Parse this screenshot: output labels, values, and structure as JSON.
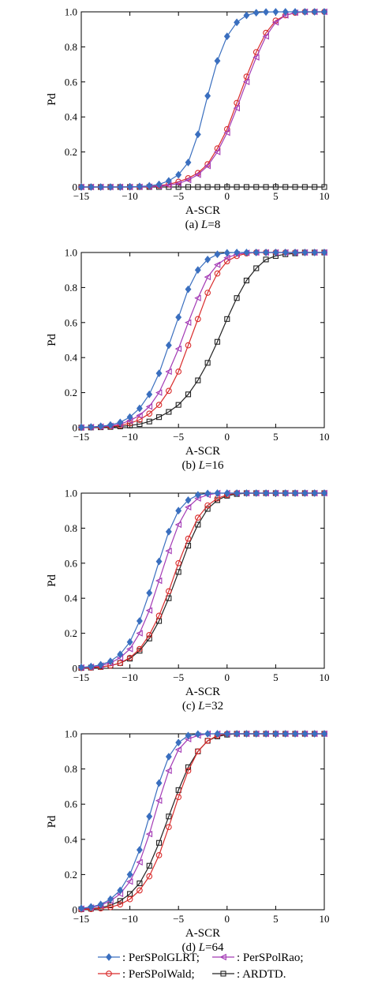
{
  "chart_data": [
    {
      "type": "line",
      "caption_prefix": "(a) ",
      "caption_var": "L",
      "caption_suffix": "=8",
      "xlabel": "A-SCR",
      "ylabel": "Pd",
      "xlim": [
        -15,
        10
      ],
      "ylim": [
        0,
        1
      ],
      "xticks": [
        -15,
        -10,
        -5,
        0,
        5,
        10
      ],
      "yticks": [
        0,
        0.2,
        0.4,
        0.6,
        0.8,
        1.0
      ],
      "grid": false,
      "x": [
        -15,
        -14,
        -13,
        -12,
        -11,
        -10,
        -9,
        -8,
        -7,
        -6,
        -5,
        -4,
        -3,
        -2,
        -1,
        0,
        1,
        2,
        3,
        4,
        5,
        6,
        7,
        8,
        9,
        10
      ],
      "series": [
        {
          "key": "glrt",
          "values": [
            0.0,
            0.0,
            0.0,
            0.0,
            0.0,
            0.001,
            0.003,
            0.007,
            0.015,
            0.035,
            0.07,
            0.14,
            0.3,
            0.52,
            0.72,
            0.86,
            0.94,
            0.98,
            0.995,
            0.999,
            1.0,
            1.0,
            1.0,
            1.0,
            1.0,
            1.0
          ]
        },
        {
          "key": "rao",
          "values": [
            0.0,
            0.0,
            0.0,
            0.0,
            0.0,
            0.0,
            0.001,
            0.002,
            0.005,
            0.01,
            0.02,
            0.04,
            0.07,
            0.12,
            0.2,
            0.31,
            0.45,
            0.6,
            0.74,
            0.86,
            0.94,
            0.98,
            0.995,
            1.0,
            1.0,
            1.0
          ]
        },
        {
          "key": "wald",
          "values": [
            0.0,
            0.0,
            0.0,
            0.0,
            0.0,
            0.0,
            0.001,
            0.003,
            0.008,
            0.015,
            0.03,
            0.05,
            0.08,
            0.13,
            0.22,
            0.33,
            0.48,
            0.63,
            0.77,
            0.88,
            0.95,
            0.98,
            0.995,
            1.0,
            1.0,
            1.0
          ]
        },
        {
          "key": "ardtd",
          "values": [
            0.0,
            0.0,
            0.0,
            0.0,
            0.0,
            0.0,
            0.0,
            0.0,
            0.0,
            0.0,
            0.0,
            0.0,
            0.0,
            0.0,
            0.0,
            0.0,
            0.0,
            0.0,
            0.0,
            0.0,
            0.0,
            0.0,
            0.0,
            0.0,
            0.0,
            0.0
          ]
        }
      ]
    },
    {
      "type": "line",
      "caption_prefix": "(b) ",
      "caption_var": "L",
      "caption_suffix": "=16",
      "xlabel": "A-SCR",
      "ylabel": "Pd",
      "xlim": [
        -15,
        10
      ],
      "ylim": [
        0,
        1
      ],
      "xticks": [
        -15,
        -10,
        -5,
        0,
        5,
        10
      ],
      "yticks": [
        0,
        0.2,
        0.4,
        0.6,
        0.8,
        1.0
      ],
      "grid": false,
      "x": [
        -15,
        -14,
        -13,
        -12,
        -11,
        -10,
        -9,
        -8,
        -7,
        -6,
        -5,
        -4,
        -3,
        -2,
        -1,
        0,
        1,
        2,
        3,
        4,
        5,
        6,
        7,
        8,
        9,
        10
      ],
      "series": [
        {
          "key": "glrt",
          "values": [
            0.002,
            0.004,
            0.008,
            0.015,
            0.03,
            0.06,
            0.11,
            0.19,
            0.31,
            0.47,
            0.63,
            0.79,
            0.9,
            0.96,
            0.99,
            0.998,
            1.0,
            1.0,
            1.0,
            1.0,
            1.0,
            1.0,
            1.0,
            1.0,
            1.0,
            1.0
          ]
        },
        {
          "key": "rao",
          "values": [
            0.001,
            0.003,
            0.006,
            0.01,
            0.02,
            0.04,
            0.07,
            0.12,
            0.2,
            0.32,
            0.45,
            0.6,
            0.74,
            0.86,
            0.93,
            0.97,
            0.99,
            0.998,
            1.0,
            1.0,
            1.0,
            1.0,
            1.0,
            1.0,
            1.0,
            1.0
          ]
        },
        {
          "key": "wald",
          "values": [
            0.001,
            0.002,
            0.004,
            0.007,
            0.012,
            0.025,
            0.045,
            0.08,
            0.13,
            0.21,
            0.32,
            0.47,
            0.62,
            0.77,
            0.88,
            0.95,
            0.98,
            0.995,
            1.0,
            1.0,
            1.0,
            1.0,
            1.0,
            1.0,
            1.0,
            1.0
          ]
        },
        {
          "key": "ardtd",
          "values": [
            0.0,
            0.001,
            0.002,
            0.004,
            0.007,
            0.012,
            0.02,
            0.035,
            0.06,
            0.09,
            0.13,
            0.19,
            0.27,
            0.37,
            0.49,
            0.62,
            0.74,
            0.84,
            0.91,
            0.96,
            0.98,
            0.99,
            0.995,
            1.0,
            1.0,
            1.0
          ]
        }
      ]
    },
    {
      "type": "line",
      "caption_prefix": "(c) ",
      "caption_var": "L",
      "caption_suffix": "=32",
      "xlabel": "A-SCR",
      "ylabel": "Pd",
      "xlim": [
        -15,
        10
      ],
      "ylim": [
        0,
        1
      ],
      "xticks": [
        -15,
        -10,
        -5,
        0,
        5,
        10
      ],
      "yticks": [
        0,
        0.2,
        0.4,
        0.6,
        0.8,
        1.0
      ],
      "grid": false,
      "x": [
        -15,
        -14,
        -13,
        -12,
        -11,
        -10,
        -9,
        -8,
        -7,
        -6,
        -5,
        -4,
        -3,
        -2,
        -1,
        0,
        1,
        2,
        3,
        4,
        5,
        6,
        7,
        8,
        9,
        10
      ],
      "series": [
        {
          "key": "glrt",
          "values": [
            0.005,
            0.01,
            0.02,
            0.04,
            0.08,
            0.15,
            0.27,
            0.43,
            0.61,
            0.78,
            0.9,
            0.96,
            0.99,
            0.998,
            1.0,
            1.0,
            1.0,
            1.0,
            1.0,
            1.0,
            1.0,
            1.0,
            1.0,
            1.0,
            1.0,
            1.0
          ]
        },
        {
          "key": "rao",
          "values": [
            0.004,
            0.008,
            0.015,
            0.03,
            0.06,
            0.11,
            0.2,
            0.33,
            0.5,
            0.67,
            0.82,
            0.92,
            0.97,
            0.99,
            1.0,
            1.0,
            1.0,
            1.0,
            1.0,
            1.0,
            1.0,
            1.0,
            1.0,
            1.0,
            1.0,
            1.0
          ]
        },
        {
          "key": "wald",
          "values": [
            0.002,
            0.004,
            0.008,
            0.015,
            0.03,
            0.06,
            0.11,
            0.19,
            0.3,
            0.44,
            0.6,
            0.74,
            0.86,
            0.93,
            0.97,
            0.99,
            1.0,
            1.0,
            1.0,
            1.0,
            1.0,
            1.0,
            1.0,
            1.0,
            1.0,
            1.0
          ]
        },
        {
          "key": "ardtd",
          "values": [
            0.002,
            0.004,
            0.008,
            0.015,
            0.03,
            0.055,
            0.1,
            0.17,
            0.27,
            0.4,
            0.55,
            0.7,
            0.82,
            0.91,
            0.96,
            0.985,
            0.995,
            1.0,
            1.0,
            1.0,
            1.0,
            1.0,
            1.0,
            1.0,
            1.0,
            1.0
          ]
        }
      ]
    },
    {
      "type": "line",
      "caption_prefix": "(d) ",
      "caption_var": "L",
      "caption_suffix": "=64",
      "xlabel": "A-SCR",
      "ylabel": "Pd",
      "xlim": [
        -15,
        10
      ],
      "ylim": [
        0,
        1
      ],
      "xticks": [
        -15,
        -10,
        -5,
        0,
        5,
        10
      ],
      "yticks": [
        0,
        0.2,
        0.4,
        0.6,
        0.8,
        1.0
      ],
      "grid": false,
      "x": [
        -15,
        -14,
        -13,
        -12,
        -11,
        -10,
        -9,
        -8,
        -7,
        -6,
        -5,
        -4,
        -3,
        -2,
        -1,
        0,
        1,
        2,
        3,
        4,
        5,
        6,
        7,
        8,
        9,
        10
      ],
      "series": [
        {
          "key": "glrt",
          "values": [
            0.008,
            0.016,
            0.03,
            0.06,
            0.11,
            0.2,
            0.34,
            0.53,
            0.72,
            0.87,
            0.95,
            0.99,
            0.998,
            1.0,
            1.0,
            1.0,
            1.0,
            1.0,
            1.0,
            1.0,
            1.0,
            1.0,
            1.0,
            1.0,
            1.0,
            1.0
          ]
        },
        {
          "key": "rao",
          "values": [
            0.006,
            0.012,
            0.025,
            0.05,
            0.09,
            0.16,
            0.27,
            0.43,
            0.62,
            0.79,
            0.91,
            0.97,
            0.99,
            1.0,
            1.0,
            1.0,
            1.0,
            1.0,
            1.0,
            1.0,
            1.0,
            1.0,
            1.0,
            1.0,
            1.0,
            1.0
          ]
        },
        {
          "key": "wald",
          "values": [
            0.002,
            0.004,
            0.008,
            0.015,
            0.03,
            0.06,
            0.11,
            0.19,
            0.31,
            0.47,
            0.64,
            0.79,
            0.9,
            0.96,
            0.99,
            1.0,
            1.0,
            1.0,
            1.0,
            1.0,
            1.0,
            1.0,
            1.0,
            1.0,
            1.0,
            1.0
          ]
        },
        {
          "key": "ardtd",
          "values": [
            0.003,
            0.006,
            0.012,
            0.025,
            0.05,
            0.09,
            0.15,
            0.25,
            0.38,
            0.53,
            0.68,
            0.81,
            0.9,
            0.96,
            0.985,
            0.995,
            1.0,
            1.0,
            1.0,
            1.0,
            1.0,
            1.0,
            1.0,
            1.0,
            1.0,
            1.0
          ]
        }
      ]
    }
  ],
  "legend": {
    "placement": "bottom",
    "entries": [
      {
        "key": "glrt",
        "label": ": PerSPolGLRT;"
      },
      {
        "key": "rao",
        "label": ": PerSPolRao;"
      },
      {
        "key": "wald",
        "label": ": PerSPolWald;"
      },
      {
        "key": "ardtd",
        "label": ": ARDTD."
      }
    ]
  },
  "series_style": {
    "glrt": {
      "color": "#3a6fbf",
      "marker": "diamond"
    },
    "rao": {
      "color": "#a33ab5",
      "marker": "triangle-left"
    },
    "wald": {
      "color": "#d92b2b",
      "marker": "circle"
    },
    "ardtd": {
      "color": "#222222",
      "marker": "square"
    }
  }
}
